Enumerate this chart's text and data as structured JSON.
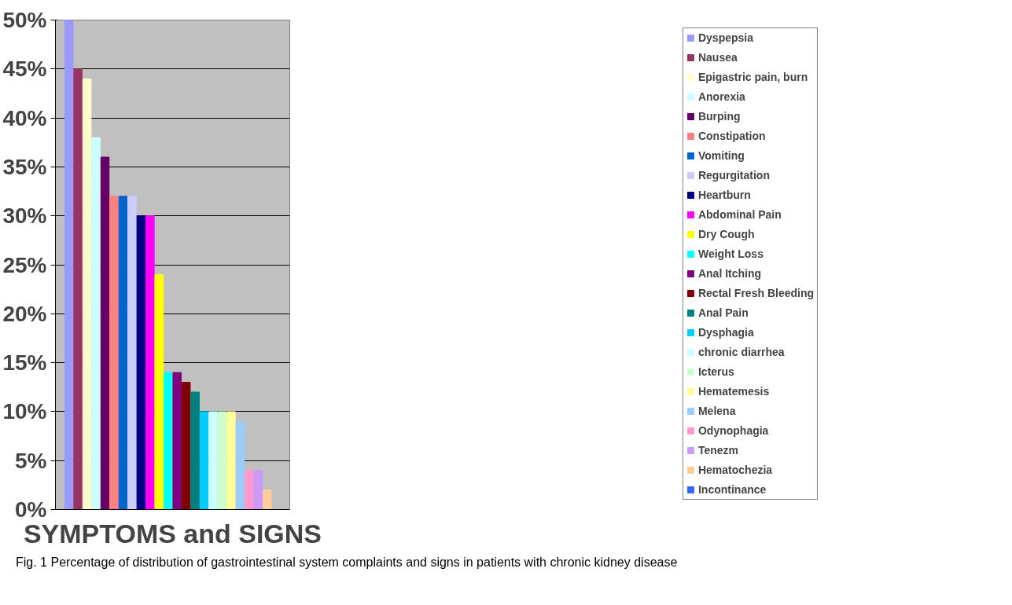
{
  "chart_data": {
    "type": "bar",
    "xlabel": "SYMPTOMS and SIGNS",
    "categories": [
      null
    ],
    "series": [
      {
        "name": "Dyspepsia",
        "color": "#9999ff",
        "values": [
          50
        ]
      },
      {
        "name": "Nausea",
        "color": "#993366",
        "values": [
          45
        ]
      },
      {
        "name": "Epigastric pain, burn",
        "color": "#ffffcc",
        "values": [
          44
        ]
      },
      {
        "name": "Anorexia",
        "color": "#ccffff",
        "values": [
          38
        ]
      },
      {
        "name": "Burping",
        "color": "#660066",
        "values": [
          36
        ]
      },
      {
        "name": "Constipation",
        "color": "#ff8080",
        "values": [
          32
        ]
      },
      {
        "name": "Vomiting",
        "color": "#0066cc",
        "values": [
          32
        ]
      },
      {
        "name": "Regurgitation",
        "color": "#ccccff",
        "values": [
          32
        ]
      },
      {
        "name": "Heartburn",
        "color": "#000080",
        "values": [
          30
        ]
      },
      {
        "name": "Abdominal Pain",
        "color": "#ff00ff",
        "values": [
          30
        ]
      },
      {
        "name": "Dry Cough",
        "color": "#ffff00",
        "values": [
          24
        ]
      },
      {
        "name": "Weight Loss",
        "color": "#00ffff",
        "values": [
          14
        ]
      },
      {
        "name": "Anal Itching",
        "color": "#800080",
        "values": [
          14
        ]
      },
      {
        "name": "Rectal Fresh Bleeding",
        "color": "#800000",
        "values": [
          13
        ]
      },
      {
        "name": "Anal Pain",
        "color": "#008080",
        "values": [
          12
        ]
      },
      {
        "name": "Dysphagia",
        "color": "#00ccff",
        "values": [
          10
        ]
      },
      {
        "name": "chronic diarrhea",
        "color": "#ccffff",
        "values": [
          10
        ]
      },
      {
        "name": "Icterus",
        "color": "#ccffcc",
        "values": [
          10
        ]
      },
      {
        "name": "Hematemesis",
        "color": "#ffff99",
        "values": [
          10
        ]
      },
      {
        "name": "Melena",
        "color": "#99ccff",
        "values": [
          9
        ]
      },
      {
        "name": "Odynophagia",
        "color": "#ff99cc",
        "values": [
          4
        ]
      },
      {
        "name": "Tenezm",
        "color": "#cc99ff",
        "values": [
          4
        ]
      },
      {
        "name": "Hematochezia",
        "color": "#ffcc99",
        "values": [
          2
        ]
      },
      {
        "name": "Incontinance",
        "color": "#3366ff",
        "values": [
          0
        ]
      }
    ],
    "ylim": [
      0,
      50
    ],
    "yticks": [
      {
        "value": 0,
        "label": "0%"
      },
      {
        "value": 5,
        "label": "5%"
      },
      {
        "value": 10,
        "label": "10%"
      },
      {
        "value": 15,
        "label": "15%"
      },
      {
        "value": 20,
        "label": "20%"
      },
      {
        "value": 25,
        "label": "25%"
      },
      {
        "value": 30,
        "label": "30%"
      },
      {
        "value": 35,
        "label": "35%"
      },
      {
        "value": 40,
        "label": "40%"
      },
      {
        "value": 45,
        "label": "45%"
      },
      {
        "value": 50,
        "label": "50%"
      }
    ],
    "grid": "y",
    "legend": "right",
    "tick_labels": "y",
    "annotations": [
      "Fig. 1  Percentage of distribution of gastrointestinal system complaints and signs in patients with chronic kidney disease"
    ]
  }
}
